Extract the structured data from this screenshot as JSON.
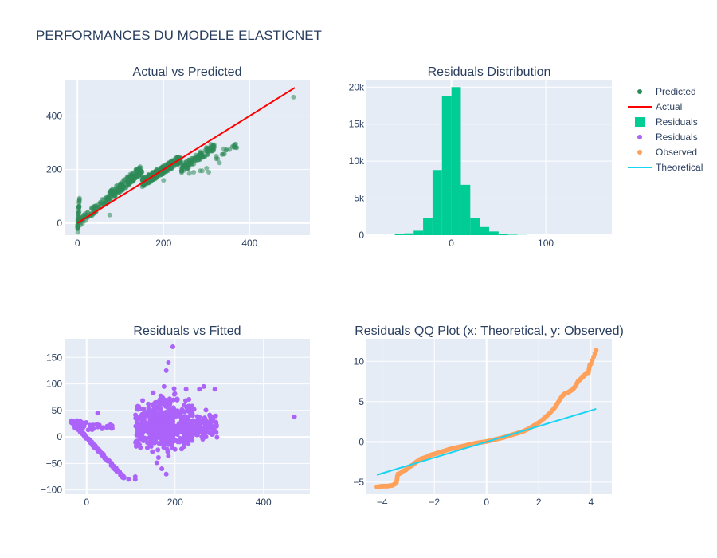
{
  "figure_title": "PERFORMANCES DU MODELE ELASTICNET",
  "colors": {
    "plot_bg": "#E5ECF6",
    "grid": "#ffffff",
    "text": "#2a3f5f",
    "predicted": "#2e8b57",
    "actual": "#ff0000",
    "histogram": "#00cc96",
    "residuals": "#ab63fa",
    "observed": "#ffa15a",
    "theoretical": "#19d3f3"
  },
  "legend": {
    "placement": "right",
    "items": [
      {
        "label": "Predicted",
        "symbol": "dot",
        "color": "#2e8b57"
      },
      {
        "label": "Actual",
        "symbol": "line",
        "color": "#ff0000"
      },
      {
        "label": "Residuals",
        "symbol": "square",
        "color": "#00cc96"
      },
      {
        "label": "Residuals",
        "symbol": "dot",
        "color": "#ab63fa"
      },
      {
        "label": "Observed",
        "symbol": "dot",
        "color": "#ffa15a"
      },
      {
        "label": "Theoretical",
        "symbol": "line",
        "color": "#19d3f3"
      }
    ]
  },
  "chart_data": [
    {
      "type": "scatter",
      "title": "Actual vs Predicted",
      "xlim": [
        -30,
        540
      ],
      "ylim": [
        -45,
        535
      ],
      "xticks": [
        0,
        200,
        400
      ],
      "yticks": [
        0,
        200,
        400
      ],
      "series": [
        {
          "name": "Predicted",
          "mode": "markers",
          "opacity": 0.55,
          "clusters": [
            {
              "x": [
                0,
                5
              ],
              "y": [
                -35,
                90
              ],
              "n": 40
            },
            {
              "x": [
                5,
                70
              ],
              "y": [
                5,
                90
              ],
              "n": 70
            },
            {
              "x": [
                70,
                150
              ],
              "y": [
                95,
                200
              ],
              "n": 170
            },
            {
              "x": [
                150,
                240
              ],
              "y": [
                150,
                240
              ],
              "n": 250
            },
            {
              "x": [
                240,
                320
              ],
              "y": [
                200,
                290
              ],
              "n": 120
            },
            {
              "x": [
                320,
                370
              ],
              "y": [
                240,
                290
              ],
              "n": 15
            }
          ],
          "points": [
            [
              502,
              470
            ],
            [
              370,
              281
            ],
            [
              340,
              277
            ],
            [
              360,
              285
            ],
            [
              305,
              190
            ],
            [
              285,
              195
            ],
            [
              290,
              195
            ],
            [
              270,
              190
            ],
            [
              200,
              160
            ],
            [
              260,
              185
            ],
            [
              300,
              205
            ],
            [
              330,
              225
            ],
            [
              75,
              30
            ]
          ]
        },
        {
          "name": "Actual",
          "mode": "line",
          "x": [
            0,
            505
          ],
          "y": [
            0,
            505
          ]
        }
      ]
    },
    {
      "type": "bar",
      "title": "Residuals Distribution",
      "xlim": [
        -90,
        170
      ],
      "ylim": [
        0,
        21000
      ],
      "xticks": [
        0,
        100
      ],
      "ytick_values": [
        0,
        5000,
        10000,
        15000,
        20000
      ],
      "ytick_labels": [
        "0",
        "5k",
        "10k",
        "15k",
        "20k"
      ],
      "bin_width": 10,
      "bin_starts": [
        -60,
        -50,
        -40,
        -30,
        -20,
        -10,
        0,
        10,
        20,
        30,
        40,
        50,
        60,
        70
      ],
      "series": [
        {
          "name": "Residuals",
          "values": [
            120,
            250,
            600,
            2300,
            8800,
            18800,
            20000,
            6800,
            2300,
            1100,
            500,
            200,
            60,
            20
          ]
        }
      ]
    },
    {
      "type": "scatter",
      "title": "Residuals vs Fitted",
      "xlim": [
        -50,
        505
      ],
      "ylim": [
        -108,
        185
      ],
      "xticks": [
        0,
        200,
        400
      ],
      "yticks": [
        -100,
        -50,
        0,
        50,
        100,
        150
      ],
      "series": [
        {
          "name": "Residuals",
          "mode": "markers",
          "band": {
            "x": [
              -35,
              85
            ],
            "y_start": 30,
            "slope": -0.9,
            "n": 150
          },
          "clusters": [
            {
              "x": [
                -30,
                60
              ],
              "y": [
                5,
                35
              ],
              "n": 40
            },
            {
              "x": [
                110,
                240
              ],
              "y": [
                -40,
                80
              ],
              "n": 420
            },
            {
              "x": [
                150,
                200
              ],
              "y": [
                -60,
                110
              ],
              "n": 130
            },
            {
              "x": [
                220,
                295
              ],
              "y": [
                -20,
                60
              ],
              "n": 110
            }
          ],
          "points": [
            [
              195,
              170
            ],
            [
              185,
              140
            ],
            [
              180,
              125
            ],
            [
              175,
              95
            ],
            [
              225,
              90
            ],
            [
              255,
              90
            ],
            [
              265,
              95
            ],
            [
              290,
              90
            ],
            [
              25,
              45
            ],
            [
              130,
              50
            ],
            [
              140,
              40
            ],
            [
              110,
              -80
            ],
            [
              95,
              -80
            ],
            [
              110,
              -75
            ],
            [
              180,
              -70
            ],
            [
              170,
              -60
            ],
            [
              270,
              0
            ],
            [
              285,
              5
            ],
            [
              290,
              10
            ],
            [
              470,
              38
            ]
          ]
        }
      ]
    },
    {
      "type": "scatter",
      "title": "Residuals QQ Plot (x: Theoretical, y: Observed)",
      "xlim": [
        -4.6,
        4.8
      ],
      "ylim": [
        -6.5,
        12.8
      ],
      "xticks": [
        -4,
        -2,
        0,
        2,
        4
      ],
      "yticks": [
        -5,
        0,
        5,
        10
      ],
      "series": [
        {
          "name": "Observed",
          "mode": "markers",
          "x": [
            -4.2,
            -4.0,
            -3.8,
            -3.6,
            -3.5,
            -3.45,
            -3.4,
            -3.3,
            -3.2,
            -3.1,
            -3.0,
            -2.9,
            -2.8,
            -2.7,
            -2.6,
            -2.5,
            -2.4,
            -2.3,
            -2.2,
            -2.1,
            -2.0,
            -1.8,
            -1.6,
            -1.4,
            -1.2,
            -1.0,
            -0.8,
            -0.6,
            -0.4,
            -0.2,
            0.0,
            0.2,
            0.4,
            0.6,
            0.8,
            1.0,
            1.2,
            1.4,
            1.6,
            1.8,
            2.0,
            2.2,
            2.4,
            2.6,
            2.7,
            2.8,
            2.9,
            3.0,
            3.1,
            3.2,
            3.3,
            3.4,
            3.5,
            3.6,
            3.7,
            3.75,
            3.8,
            3.85,
            3.9,
            3.95,
            4.0,
            4.2
          ],
          "y": [
            -5.6,
            -5.5,
            -5.5,
            -5.4,
            -5.2,
            -5.0,
            -4.0,
            -3.9,
            -3.6,
            -3.5,
            -3.2,
            -3.0,
            -2.8,
            -2.5,
            -2.3,
            -2.1,
            -2.0,
            -1.9,
            -1.7,
            -1.6,
            -1.5,
            -1.3,
            -1.1,
            -0.9,
            -0.75,
            -0.6,
            -0.45,
            -0.3,
            -0.15,
            -0.05,
            0.05,
            0.2,
            0.35,
            0.5,
            0.7,
            0.9,
            1.1,
            1.3,
            1.6,
            2.0,
            2.4,
            2.9,
            3.5,
            4.2,
            4.7,
            5.2,
            5.7,
            6.0,
            6.1,
            6.3,
            6.5,
            6.9,
            7.5,
            7.8,
            8.1,
            8.3,
            8.4,
            8.5,
            8.5,
            9.5,
            9.7,
            11.4
          ]
        },
        {
          "name": "Theoretical",
          "mode": "line",
          "x": [
            -4.2,
            4.2
          ],
          "y": [
            -4.1,
            4.1
          ]
        }
      ]
    }
  ]
}
